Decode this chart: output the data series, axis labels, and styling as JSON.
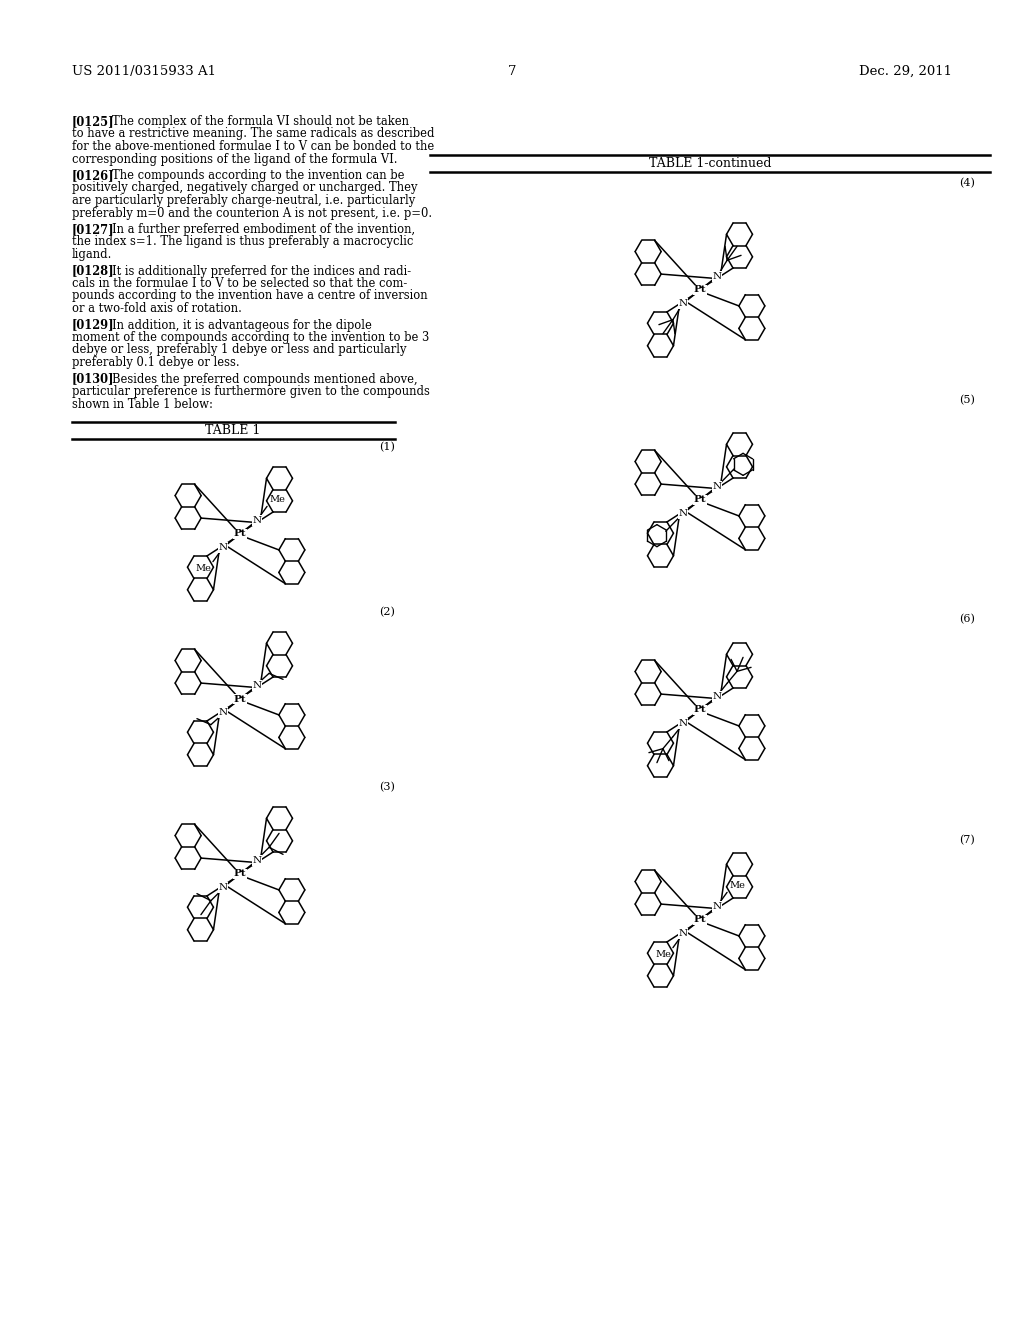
{
  "header_left": "US 2011/0315933 A1",
  "header_right": "Dec. 29, 2011",
  "page_number": "7",
  "bg_color": "#ffffff",
  "paragraphs": [
    {
      "num": "[0125]",
      "lines": [
        "The complex of the formula VI should not be taken",
        "to have a restrictive meaning. The same radicals as described",
        "for the above-mentioned formulae I to V can be bonded to the",
        "corresponding positions of the ligand of the formula VI."
      ]
    },
    {
      "num": "[0126]",
      "lines": [
        "The compounds according to the invention can be",
        "positively charged, negatively charged or uncharged. They",
        "are particularly preferably charge-neutral, i.e. particularly",
        "preferably m=0 and the counterion A is not present, i.e. p=0."
      ]
    },
    {
      "num": "[0127]",
      "lines": [
        "In a further preferred embodiment of the invention,",
        "the index s=1. The ligand is thus preferably a macrocyclic",
        "ligand."
      ]
    },
    {
      "num": "[0128]",
      "lines": [
        "It is additionally preferred for the indices and radi-",
        "cals in the formulae I to V to be selected so that the com-",
        "pounds according to the invention have a centre of inversion",
        "or a two-fold axis of rotation."
      ]
    },
    {
      "num": "[0129]",
      "lines": [
        "In addition, it is advantageous for the dipole",
        "moment of the compounds according to the invention to be 3",
        "debye or less, preferably 1 debye or less and particularly",
        "preferably 0.1 debye or less."
      ]
    },
    {
      "num": "[0130]",
      "lines": [
        "Besides the preferred compounds mentioned above,",
        "particular preference is furthermore given to the compounds",
        "shown in Table 1 below:"
      ]
    }
  ],
  "table1_title": "TABLE 1",
  "table1_cont_title": "TABLE 1-continued",
  "compound_labels": [
    "(1)",
    "(2)",
    "(3)",
    "(4)",
    "(5)",
    "(6)",
    "(7)"
  ]
}
